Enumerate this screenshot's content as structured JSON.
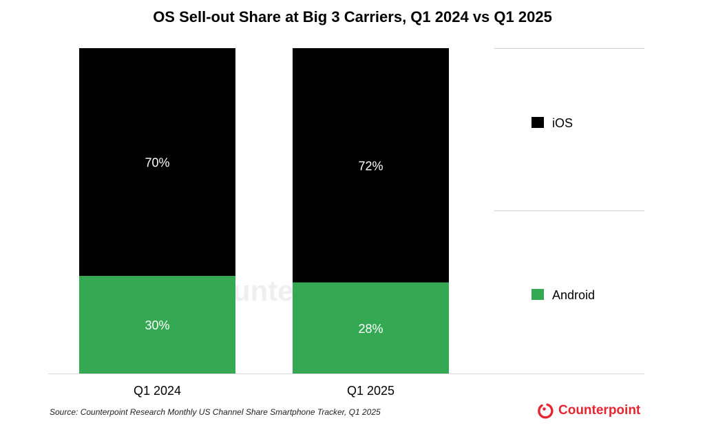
{
  "chart_data": {
    "type": "bar",
    "stacked": true,
    "title": "OS Sell-out Share at Big 3 Carriers, Q1 2024 vs Q1 2025",
    "xlabel": "",
    "ylabel": "",
    "ylim": [
      0,
      100
    ],
    "grid": false,
    "legend_position": "right",
    "categories": [
      "Q1 2024",
      "Q1 2025"
    ],
    "series": [
      {
        "name": "Android",
        "color": "#34a853",
        "values": [
          30,
          28
        ],
        "labels": [
          "30%",
          "28%"
        ]
      },
      {
        "name": "iOS",
        "color": "#000000",
        "values": [
          70,
          72
        ],
        "labels": [
          "70%",
          "72%"
        ]
      }
    ],
    "legend": [
      {
        "name": "iOS",
        "color": "#000000"
      },
      {
        "name": "Android",
        "color": "#34a853"
      }
    ]
  },
  "source": "Source: Counterpoint Research Monthly US Channel Share Smartphone Tracker, Q1 2025",
  "logo": {
    "text": "Counterpoint",
    "color": "#e3262f"
  },
  "watermark": "Counterpoint"
}
